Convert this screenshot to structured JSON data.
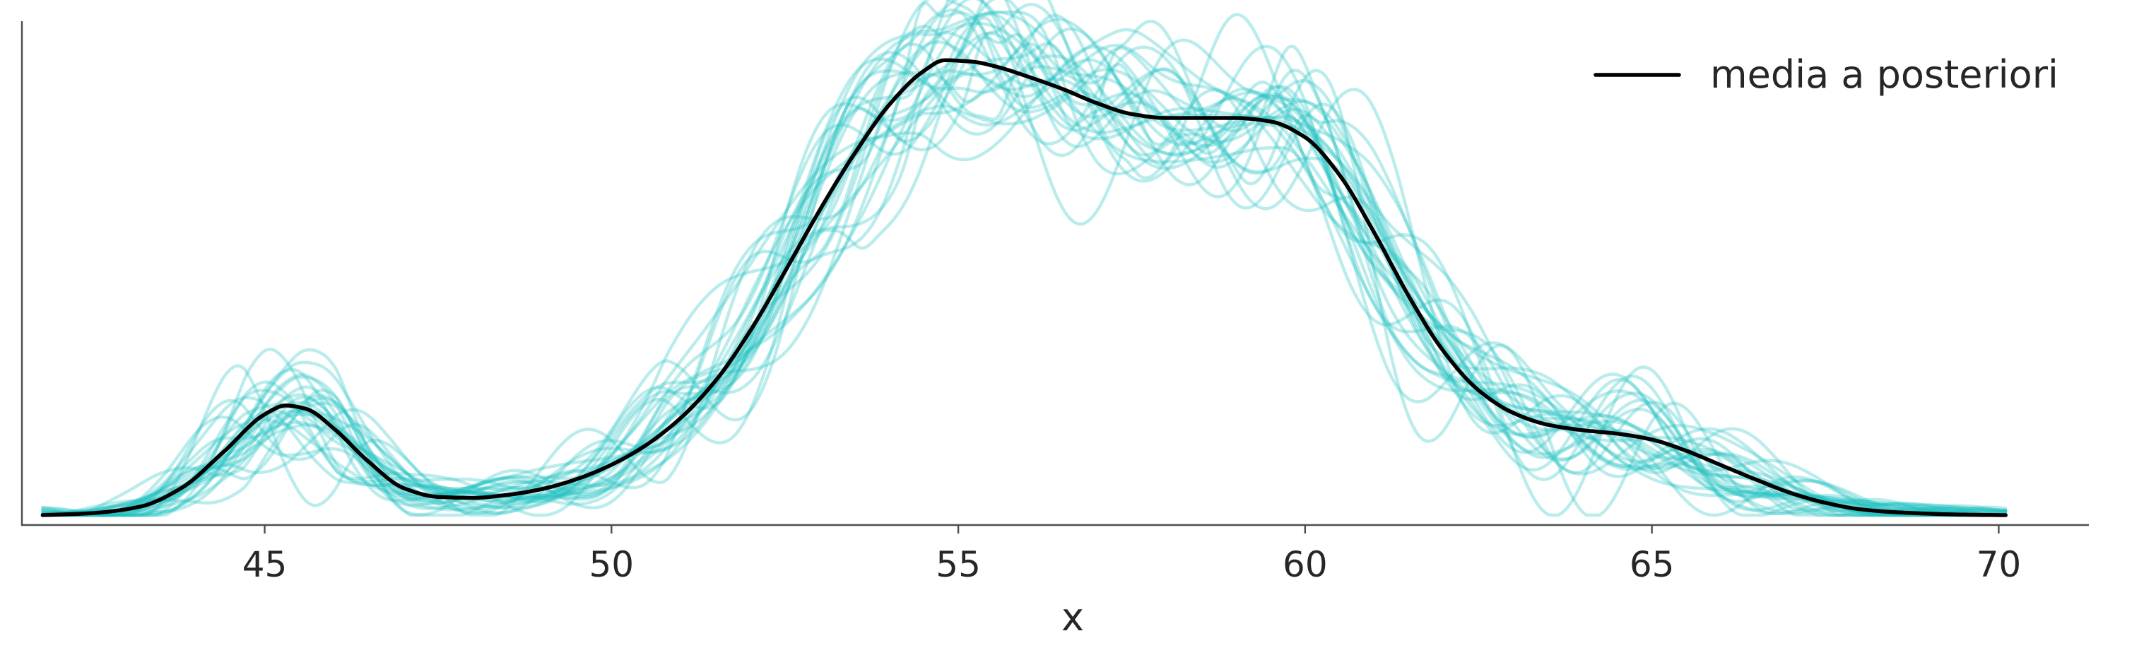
{
  "chart_data": {
    "type": "line",
    "title": "",
    "xlabel": "x",
    "ylabel": "",
    "xlim": [
      41.5,
      71.3
    ],
    "ylim": [
      -0.002,
      0.1
    ],
    "xticks": [
      45,
      50,
      55,
      60,
      65,
      70
    ],
    "xtick_labels": [
      "45",
      "50",
      "55",
      "60",
      "65",
      "70"
    ],
    "yticks_visible": false,
    "grid": false,
    "legend": {
      "placement": "top-right",
      "entries": [
        {
          "label": "media a posteriori",
          "color": "#000000"
        }
      ]
    },
    "colors": {
      "samples": "#1fbfbf",
      "mean": "#000000"
    },
    "samples_opacity": 0.3,
    "mean_series": {
      "name": "media a posteriori",
      "x": [
        41.8,
        42.5,
        43.2,
        43.8,
        44.4,
        45.0,
        45.3,
        45.6,
        46.0,
        46.5,
        47.0,
        47.5,
        48.0,
        48.5,
        49.0,
        49.5,
        50.0,
        50.5,
        51.0,
        51.5,
        52.0,
        52.5,
        53.0,
        53.5,
        54.0,
        54.5,
        54.8,
        55.2,
        55.6,
        56.0,
        56.5,
        57.0,
        57.5,
        58.0,
        58.5,
        59.0,
        59.5,
        60.0,
        60.5,
        61.0,
        61.5,
        62.0,
        62.5,
        63.0,
        63.5,
        64.0,
        64.5,
        65.0,
        65.5,
        66.0,
        66.5,
        67.0,
        67.5,
        68.0,
        68.5,
        69.0,
        69.5,
        70.1
      ],
      "y": [
        0.0,
        0.0004,
        0.0017,
        0.0055,
        0.0127,
        0.0204,
        0.0222,
        0.0215,
        0.0175,
        0.0108,
        0.0055,
        0.0037,
        0.0035,
        0.0041,
        0.0053,
        0.0073,
        0.0102,
        0.0142,
        0.0197,
        0.0272,
        0.0373,
        0.0493,
        0.0617,
        0.0731,
        0.083,
        0.0899,
        0.0921,
        0.0918,
        0.0906,
        0.0888,
        0.0863,
        0.0834,
        0.0812,
        0.0804,
        0.0804,
        0.0804,
        0.0797,
        0.0765,
        0.0688,
        0.0571,
        0.0442,
        0.0331,
        0.0253,
        0.0207,
        0.0183,
        0.0172,
        0.0165,
        0.0153,
        0.013,
        0.0101,
        0.0072,
        0.0045,
        0.0025,
        0.0012,
        0.0006,
        0.0003,
        0.0001,
        0.0
      ]
    },
    "sample_series_count": 30
  }
}
